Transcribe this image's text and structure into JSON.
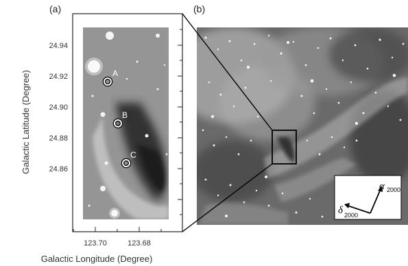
{
  "panels": {
    "a": {
      "label": "(a)",
      "y_axis_title": "Galactic Latitude (Degree)",
      "x_axis_title": "Galactic Longitude (Degree)",
      "y_ticks": [
        "24.94",
        "24.92",
        "24.90",
        "24.88",
        "24.86"
      ],
      "x_ticks": [
        "123.70",
        "123.68"
      ],
      "sources": [
        "A",
        "B",
        "C"
      ]
    },
    "b": {
      "label": "(b)",
      "compass": {
        "alpha": "α",
        "delta": "δ",
        "epoch": "2000"
      }
    }
  }
}
